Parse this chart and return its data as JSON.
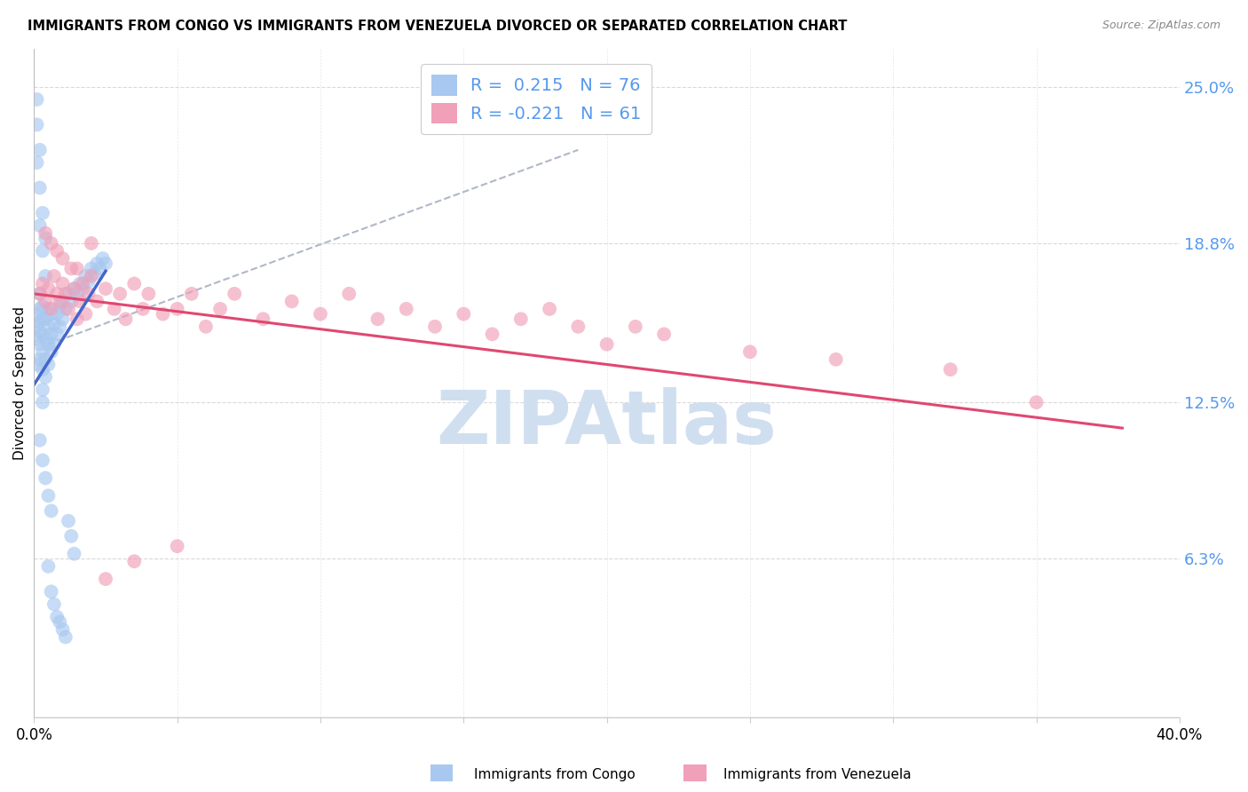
{
  "title": "IMMIGRANTS FROM CONGO VS IMMIGRANTS FROM VENEZUELA DIVORCED OR SEPARATED CORRELATION CHART",
  "source": "Source: ZipAtlas.com",
  "ylabel": "Divorced or Separated",
  "xlim": [
    0.0,
    0.4
  ],
  "ylim": [
    0.0,
    0.265
  ],
  "ytick_positions": [
    0.063,
    0.125,
    0.188,
    0.25
  ],
  "ytick_labels": [
    "6.3%",
    "12.5%",
    "18.8%",
    "25.0%"
  ],
  "legend_r_congo": "0.215",
  "legend_n_congo": "76",
  "legend_r_venezuela": "-0.221",
  "legend_n_venezuela": "61",
  "color_congo": "#a8c8f0",
  "color_venezuela": "#f0a0b8",
  "color_congo_line": "#4466cc",
  "color_venezuela_line": "#e04870",
  "color_dashed": "#b0b8c8",
  "color_grid": "#d0d0d0",
  "color_right_labels": "#5599ee",
  "watermark_color": "#d0dff0",
  "congo_x": [
    0.001,
    0.001,
    0.001,
    0.001,
    0.002,
    0.002,
    0.002,
    0.002,
    0.002,
    0.002,
    0.003,
    0.003,
    0.003,
    0.003,
    0.003,
    0.003,
    0.004,
    0.004,
    0.004,
    0.004,
    0.005,
    0.005,
    0.005,
    0.005,
    0.006,
    0.006,
    0.006,
    0.007,
    0.007,
    0.008,
    0.008,
    0.009,
    0.009,
    0.01,
    0.01,
    0.011,
    0.012,
    0.013,
    0.014,
    0.015,
    0.016,
    0.017,
    0.018,
    0.019,
    0.02,
    0.021,
    0.022,
    0.023,
    0.024,
    0.025,
    0.001,
    0.001,
    0.001,
    0.002,
    0.002,
    0.002,
    0.003,
    0.003,
    0.004,
    0.004,
    0.005,
    0.006,
    0.007,
    0.008,
    0.009,
    0.01,
    0.011,
    0.012,
    0.013,
    0.014,
    0.002,
    0.003,
    0.004,
    0.005,
    0.006,
    0.003
  ],
  "congo_y": [
    0.14,
    0.15,
    0.155,
    0.16,
    0.142,
    0.148,
    0.153,
    0.157,
    0.162,
    0.168,
    0.13,
    0.138,
    0.145,
    0.152,
    0.158,
    0.163,
    0.135,
    0.142,
    0.15,
    0.158,
    0.14,
    0.148,
    0.155,
    0.162,
    0.145,
    0.152,
    0.16,
    0.148,
    0.156,
    0.152,
    0.16,
    0.155,
    0.163,
    0.158,
    0.165,
    0.162,
    0.168,
    0.165,
    0.17,
    0.168,
    0.172,
    0.17,
    0.175,
    0.173,
    0.178,
    0.176,
    0.18,
    0.178,
    0.182,
    0.18,
    0.22,
    0.235,
    0.245,
    0.21,
    0.225,
    0.195,
    0.2,
    0.185,
    0.19,
    0.175,
    0.06,
    0.05,
    0.045,
    0.04,
    0.038,
    0.035,
    0.032,
    0.078,
    0.072,
    0.065,
    0.11,
    0.102,
    0.095,
    0.088,
    0.082,
    0.125
  ],
  "venezuela_x": [
    0.002,
    0.003,
    0.004,
    0.005,
    0.006,
    0.007,
    0.008,
    0.009,
    0.01,
    0.011,
    0.012,
    0.013,
    0.014,
    0.015,
    0.016,
    0.017,
    0.018,
    0.019,
    0.02,
    0.022,
    0.025,
    0.028,
    0.03,
    0.032,
    0.035,
    0.038,
    0.04,
    0.045,
    0.05,
    0.055,
    0.06,
    0.065,
    0.07,
    0.08,
    0.09,
    0.1,
    0.11,
    0.12,
    0.13,
    0.14,
    0.15,
    0.16,
    0.17,
    0.18,
    0.19,
    0.2,
    0.21,
    0.22,
    0.25,
    0.28,
    0.32,
    0.35,
    0.004,
    0.006,
    0.008,
    0.01,
    0.015,
    0.02,
    0.025,
    0.035,
    0.05
  ],
  "venezuela_y": [
    0.168,
    0.172,
    0.165,
    0.17,
    0.162,
    0.175,
    0.168,
    0.165,
    0.172,
    0.168,
    0.162,
    0.178,
    0.17,
    0.158,
    0.165,
    0.172,
    0.16,
    0.168,
    0.175,
    0.165,
    0.17,
    0.162,
    0.168,
    0.158,
    0.172,
    0.162,
    0.168,
    0.16,
    0.162,
    0.168,
    0.155,
    0.162,
    0.168,
    0.158,
    0.165,
    0.16,
    0.168,
    0.158,
    0.162,
    0.155,
    0.16,
    0.152,
    0.158,
    0.162,
    0.155,
    0.148,
    0.155,
    0.152,
    0.145,
    0.142,
    0.138,
    0.125,
    0.192,
    0.188,
    0.185,
    0.182,
    0.178,
    0.188,
    0.055,
    0.062,
    0.068
  ],
  "congo_line_x": [
    0.0,
    0.025
  ],
  "congo_line_y_intercept": 0.132,
  "congo_line_slope": 1.8,
  "venezuela_line_x": [
    0.0,
    0.38
  ],
  "venezuela_line_y_intercept": 0.168,
  "venezuela_line_slope": -0.14,
  "dashed_line_x": [
    0.005,
    0.19
  ],
  "dashed_line_y_start": 0.148,
  "dashed_line_y_end": 0.225
}
